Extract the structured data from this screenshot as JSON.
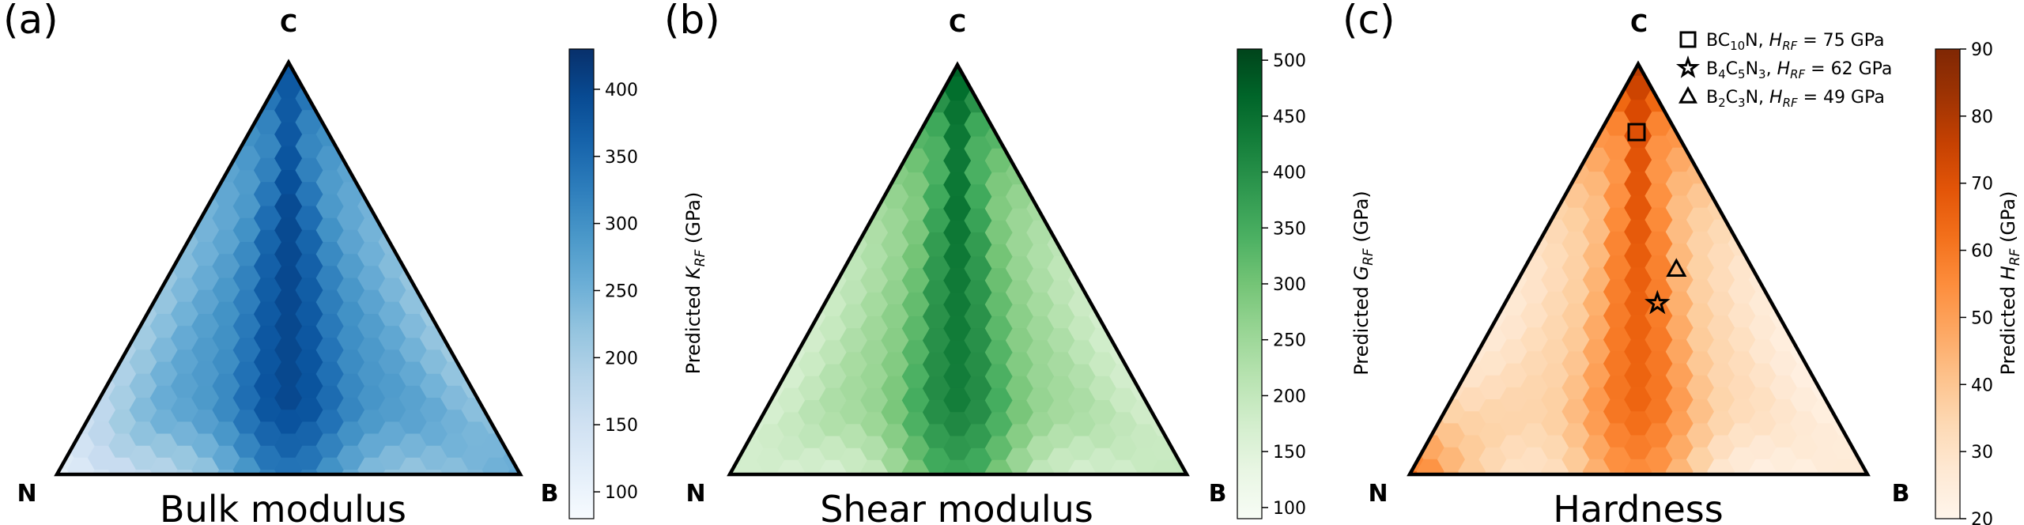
{
  "figure": {
    "panels": [
      {
        "id": "a",
        "panel_label": "(a)",
        "title": "Bulk modulus",
        "vertex_labels": {
          "top": "C",
          "left": "N",
          "right": "B"
        },
        "colormap": "Blues",
        "colorbar_label": "Predicted K_RF (GPa)",
        "colorbar_label_parts": {
          "prefix": "Predicted ",
          "symbol": "K",
          "subscript": "RF",
          "suffix": " (GPa)"
        }
      },
      {
        "id": "b",
        "panel_label": "(b)",
        "title": "Shear modulus",
        "vertex_labels": {
          "top": "C",
          "left": "N",
          "right": "B"
        },
        "colormap": "Greens",
        "colorbar_label": "Predicted G_RF (GPa)",
        "colorbar_label_parts": {
          "prefix": "Predicted ",
          "symbol": "G",
          "subscript": "RF",
          "suffix": " (GPa)"
        }
      },
      {
        "id": "c",
        "panel_label": "(c)",
        "title": "Hardness",
        "vertex_labels": {
          "top": "C",
          "left": "N",
          "right": "B"
        },
        "colormap": "Oranges",
        "colorbar_label": "Predicted H_RF (GPa)",
        "colorbar_label_parts": {
          "prefix": "Predicted ",
          "symbol": "H",
          "subscript": "RF",
          "suffix": " (GPa)"
        }
      }
    ],
    "legend": [
      {
        "marker": "square",
        "formula": "BC10N",
        "formula_parts": [
          [
            "BC",
            ""
          ],
          [
            "10",
            "sub"
          ],
          [
            "N",
            ""
          ]
        ],
        "value_text": "H_RF = 75 GPa",
        "value_parts": {
          "symbol": "H",
          "subscript": "RF",
          "rest": " = 75 GPa"
        }
      },
      {
        "marker": "star",
        "formula": "B4C5N3",
        "formula_parts": [
          [
            "B",
            ""
          ],
          [
            "4",
            "sub"
          ],
          [
            "C",
            ""
          ],
          [
            "5",
            "sub"
          ],
          [
            "N",
            ""
          ],
          [
            "3",
            "sub"
          ]
        ],
        "value_text": "H_RF = 62 GPa",
        "value_parts": {
          "symbol": "H",
          "subscript": "RF",
          "rest": " = 62 GPa"
        }
      },
      {
        "marker": "triangle",
        "formula": "B2C3N",
        "formula_parts": [
          [
            "B",
            ""
          ],
          [
            "2",
            "sub"
          ],
          [
            "C",
            ""
          ],
          [
            "3",
            "sub"
          ],
          [
            "N",
            ""
          ]
        ],
        "value_text": "H_RF = 49 GPa",
        "value_parts": {
          "symbol": "H",
          "subscript": "RF",
          "rest": " = 49 GPa"
        }
      }
    ]
  },
  "chart_data": [
    {
      "type": "heatmap",
      "subtype": "ternary-hexbin",
      "title": "Bulk modulus",
      "components": [
        "C",
        "N",
        "B"
      ],
      "zlabel": "Predicted K_RF (GPa)",
      "zlim": [
        80,
        430
      ],
      "colorbar_ticks": [
        100,
        150,
        200,
        250,
        300,
        350,
        400
      ],
      "trend": "highest (~400 GPa) along a vertical band from C to the N-B midpoint; ~280 GPa near the sides; lowest (~100 GPa) at the N corner",
      "field": {
        "peak": 400,
        "side": 280,
        "edge_floor": 240,
        "n_corner": 100,
        "c_corner": 380,
        "b_corner": 270
      }
    },
    {
      "type": "heatmap",
      "subtype": "ternary-hexbin",
      "title": "Shear modulus",
      "components": [
        "C",
        "N",
        "B"
      ],
      "zlabel": "Predicted G_RF (GPa)",
      "zlim": [
        90,
        510
      ],
      "colorbar_ticks": [
        100,
        150,
        200,
        250,
        300,
        350,
        400,
        450,
        500
      ],
      "trend": "highest (~420-500 GPa) along the central vertical band, lower toward N and B edges (~200 GPa)",
      "field": {
        "peak": 430,
        "side": 240,
        "edge_floor": 190,
        "n_corner": 180,
        "c_corner": 470,
        "b_corner": 210
      }
    },
    {
      "type": "heatmap",
      "subtype": "ternary-hexbin",
      "title": "Hardness",
      "components": [
        "C",
        "N",
        "B"
      ],
      "zlabel": "Predicted H_RF (GPa)",
      "zlim": [
        20,
        90
      ],
      "colorbar_ticks": [
        20,
        30,
        40,
        50,
        60,
        70,
        80,
        90
      ],
      "trend": "highest (~75 GPa) near the C corner along the central band; ~25 GPa near the N and B corners with a hot spot at the N corner",
      "field": {
        "peak": 65,
        "side": 32,
        "edge_floor": 25,
        "n_corner": 65,
        "c_corner": 78,
        "b_corner": 28
      },
      "points": [
        {
          "label": "BC10N",
          "marker": "square",
          "value": 75,
          "composition": {
            "C": 0.833,
            "N": 0.083,
            "B": 0.083
          }
        },
        {
          "label": "B4C5N3",
          "marker": "star",
          "value": 62,
          "composition": {
            "C": 0.417,
            "N": 0.25,
            "B": 0.333
          }
        },
        {
          "label": "B2C3N",
          "marker": "triangle",
          "value": 49,
          "composition": {
            "C": 0.5,
            "N": 0.167,
            "B": 0.333
          }
        }
      ]
    }
  ]
}
